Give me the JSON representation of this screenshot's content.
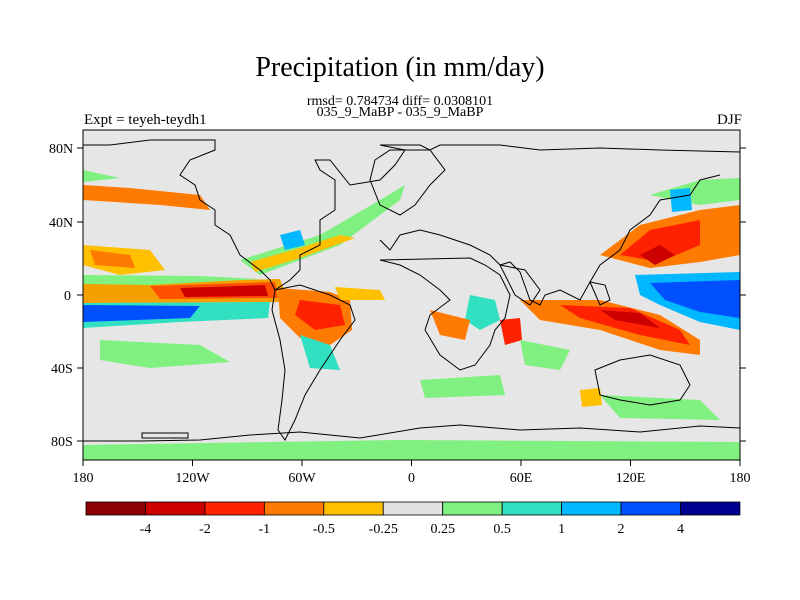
{
  "title": "Precipitation (in mm/day)",
  "stats_line": "rmsd= 0.784734 diff= 0.0308101",
  "experiment_line": "035_9_MaBP - 035_9_MaBP",
  "left_label": "Expt = teyeh-teydh1",
  "right_label": "DJF",
  "lat_ticks": [
    "80N",
    "40N",
    "0",
    "40S",
    "80S"
  ],
  "lon_ticks": [
    "180",
    "120W",
    "60W",
    "0",
    "60E",
    "120E",
    "180"
  ],
  "colorbar": {
    "colors": [
      "#8b0000",
      "#cc0000",
      "#ff2200",
      "#ff7a00",
      "#ffc000",
      "#e0e0e0",
      "#80f080",
      "#30e0c0",
      "#00b8ff",
      "#0050ff",
      "#000090"
    ],
    "labels": [
      "-4",
      "-2",
      "-1",
      "-0.5",
      "-0.25",
      "0.25",
      "0.5",
      "1",
      "2",
      "4"
    ]
  },
  "colors": {
    "land_fill": "#e6e6e6",
    "coastline": "#000000"
  }
}
